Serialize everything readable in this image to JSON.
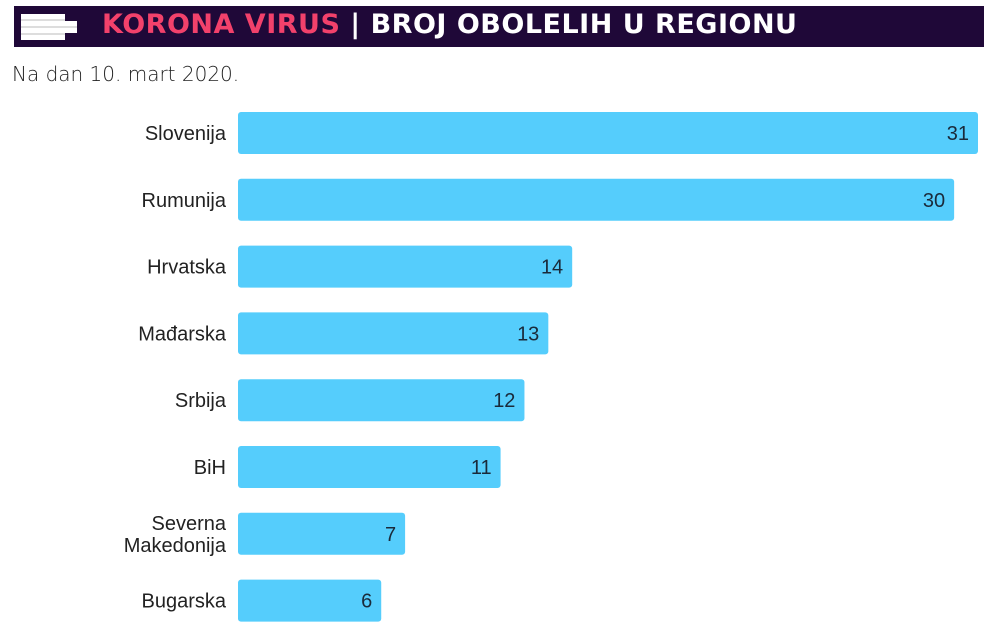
{
  "header": {
    "title_accent": "KORONA VIRUS",
    "separator": " | ",
    "title_main": "BROJ OBOLELIH U REGIONU",
    "subtitle": "Na dan 10. mart 2020."
  },
  "colors": {
    "header_bg": "#1f0838",
    "accent": "#f2416b",
    "bar": "#55cdfc",
    "label": "#222222"
  },
  "chart_data": {
    "type": "bar",
    "orientation": "horizontal",
    "categories": [
      "Slovenija",
      "Rumunija",
      "Hrvatska",
      "Mađarska",
      "Srbija",
      "BiH",
      "Severna Makedonija",
      "Bugarska"
    ],
    "values": [
      31,
      30,
      14,
      13,
      12,
      11,
      7,
      6
    ],
    "data_labels": true,
    "grid": false,
    "xlim": [
      0,
      31
    ]
  }
}
